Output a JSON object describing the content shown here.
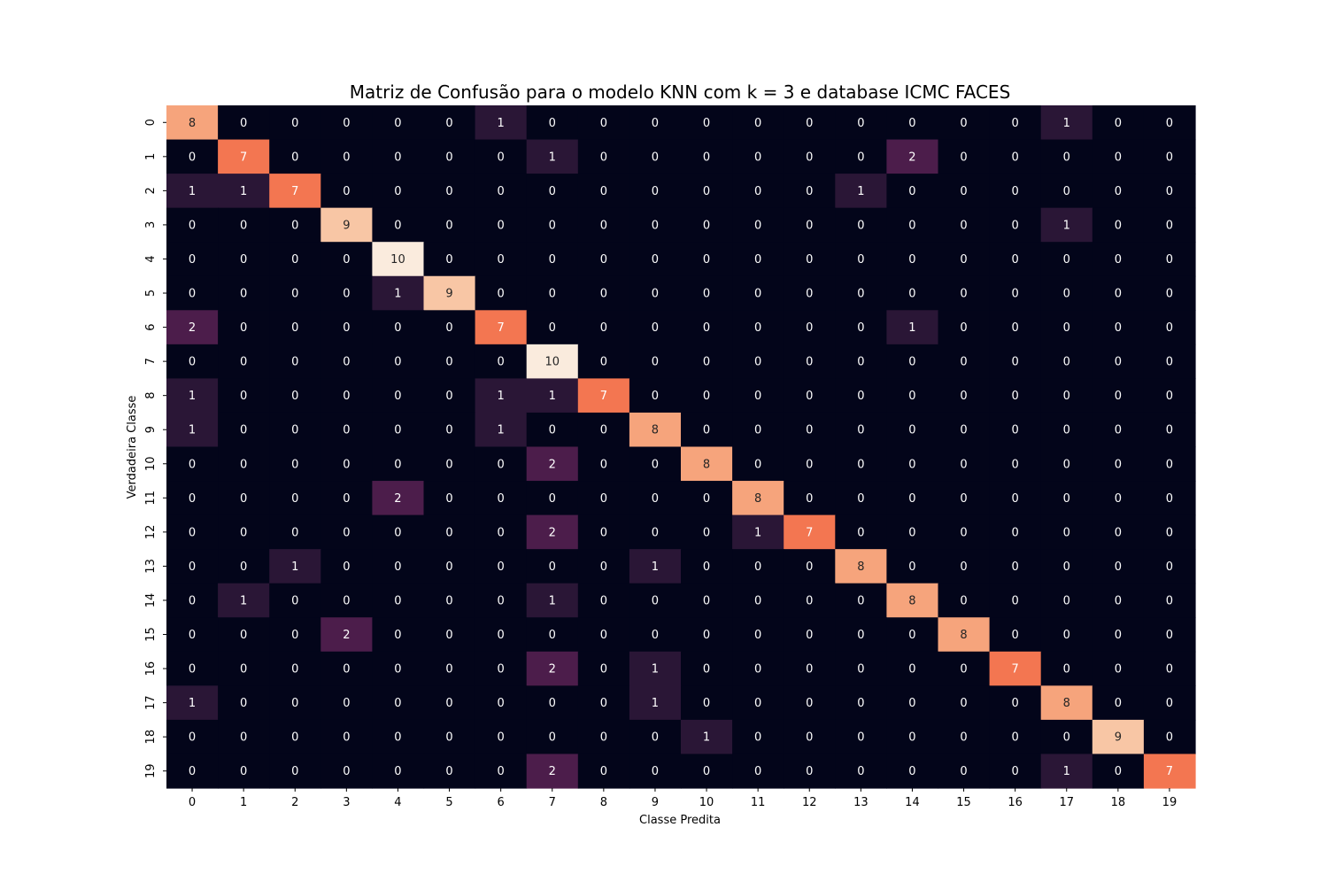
{
  "chart_data": {
    "type": "heatmap",
    "title": "Matriz de Confusão para o modelo KNN com k = 3 e database ICMC FACES",
    "xlabel": "Classe Predita",
    "ylabel": "Verdadeira Classe",
    "x_categories": [
      "0",
      "1",
      "2",
      "3",
      "4",
      "5",
      "6",
      "7",
      "8",
      "9",
      "10",
      "11",
      "12",
      "13",
      "14",
      "15",
      "16",
      "17",
      "18",
      "19"
    ],
    "y_categories": [
      "0",
      "1",
      "2",
      "3",
      "4",
      "5",
      "6",
      "7",
      "8",
      "9",
      "10",
      "11",
      "12",
      "13",
      "14",
      "15",
      "16",
      "17",
      "18",
      "19"
    ],
    "value_range": [
      0,
      10
    ],
    "colormap": "rocket",
    "colorbar": false,
    "matrix": [
      [
        8,
        0,
        0,
        0,
        0,
        0,
        1,
        0,
        0,
        0,
        0,
        0,
        0,
        0,
        0,
        0,
        0,
        1,
        0,
        0
      ],
      [
        0,
        7,
        0,
        0,
        0,
        0,
        0,
        1,
        0,
        0,
        0,
        0,
        0,
        0,
        2,
        0,
        0,
        0,
        0,
        0
      ],
      [
        1,
        1,
        7,
        0,
        0,
        0,
        0,
        0,
        0,
        0,
        0,
        0,
        0,
        1,
        0,
        0,
        0,
        0,
        0,
        0
      ],
      [
        0,
        0,
        0,
        9,
        0,
        0,
        0,
        0,
        0,
        0,
        0,
        0,
        0,
        0,
        0,
        0,
        0,
        1,
        0,
        0
      ],
      [
        0,
        0,
        0,
        0,
        10,
        0,
        0,
        0,
        0,
        0,
        0,
        0,
        0,
        0,
        0,
        0,
        0,
        0,
        0,
        0
      ],
      [
        0,
        0,
        0,
        0,
        1,
        9,
        0,
        0,
        0,
        0,
        0,
        0,
        0,
        0,
        0,
        0,
        0,
        0,
        0,
        0
      ],
      [
        2,
        0,
        0,
        0,
        0,
        0,
        7,
        0,
        0,
        0,
        0,
        0,
        0,
        0,
        1,
        0,
        0,
        0,
        0,
        0
      ],
      [
        0,
        0,
        0,
        0,
        0,
        0,
        0,
        10,
        0,
        0,
        0,
        0,
        0,
        0,
        0,
        0,
        0,
        0,
        0,
        0
      ],
      [
        1,
        0,
        0,
        0,
        0,
        0,
        1,
        1,
        7,
        0,
        0,
        0,
        0,
        0,
        0,
        0,
        0,
        0,
        0,
        0
      ],
      [
        1,
        0,
        0,
        0,
        0,
        0,
        1,
        0,
        0,
        8,
        0,
        0,
        0,
        0,
        0,
        0,
        0,
        0,
        0,
        0
      ],
      [
        0,
        0,
        0,
        0,
        0,
        0,
        0,
        2,
        0,
        0,
        8,
        0,
        0,
        0,
        0,
        0,
        0,
        0,
        0,
        0
      ],
      [
        0,
        0,
        0,
        0,
        2,
        0,
        0,
        0,
        0,
        0,
        0,
        8,
        0,
        0,
        0,
        0,
        0,
        0,
        0,
        0
      ],
      [
        0,
        0,
        0,
        0,
        0,
        0,
        0,
        2,
        0,
        0,
        0,
        1,
        7,
        0,
        0,
        0,
        0,
        0,
        0,
        0
      ],
      [
        0,
        0,
        1,
        0,
        0,
        0,
        0,
        0,
        0,
        1,
        0,
        0,
        0,
        8,
        0,
        0,
        0,
        0,
        0,
        0
      ],
      [
        0,
        1,
        0,
        0,
        0,
        0,
        0,
        1,
        0,
        0,
        0,
        0,
        0,
        0,
        8,
        0,
        0,
        0,
        0,
        0
      ],
      [
        0,
        0,
        0,
        2,
        0,
        0,
        0,
        0,
        0,
        0,
        0,
        0,
        0,
        0,
        0,
        8,
        0,
        0,
        0,
        0
      ],
      [
        0,
        0,
        0,
        0,
        0,
        0,
        0,
        2,
        0,
        1,
        0,
        0,
        0,
        0,
        0,
        0,
        7,
        0,
        0,
        0
      ],
      [
        1,
        0,
        0,
        0,
        0,
        0,
        0,
        0,
        0,
        1,
        0,
        0,
        0,
        0,
        0,
        0,
        0,
        8,
        0,
        0
      ],
      [
        0,
        0,
        0,
        0,
        0,
        0,
        0,
        0,
        0,
        0,
        1,
        0,
        0,
        0,
        0,
        0,
        0,
        0,
        9,
        0
      ],
      [
        0,
        0,
        0,
        0,
        0,
        0,
        0,
        2,
        0,
        0,
        0,
        0,
        0,
        0,
        0,
        0,
        0,
        1,
        0,
        7
      ]
    ],
    "cell_colors": {
      "0": "#03051a",
      "1": "#2a1636",
      "2": "#4c1d4b",
      "7": "#f37651",
      "8": "#f6a47c",
      "9": "#f8c6a5",
      "10": "#faebdd"
    }
  }
}
